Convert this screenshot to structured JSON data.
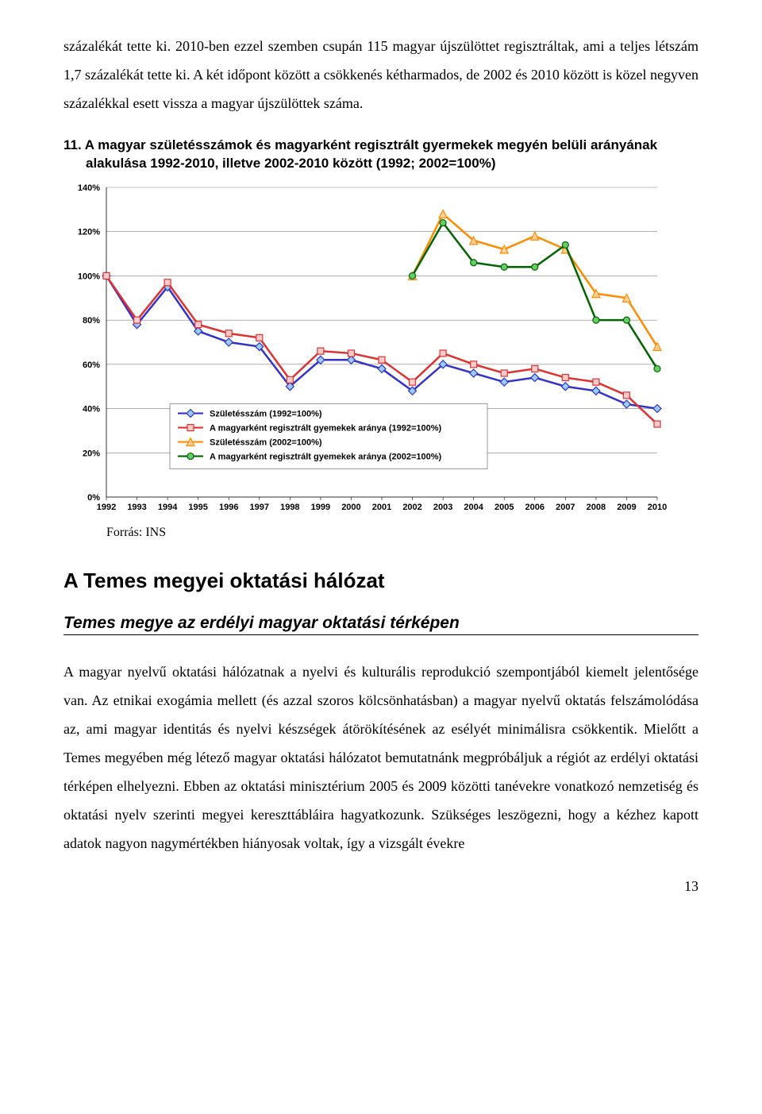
{
  "para1": "százalékát tette ki. 2010-ben ezzel szemben csupán 115 magyar újszülöttet regisztráltak, ami a teljes létszám 1,7 százalékát tette ki. A két időpont között a csökkenés kétharmados, de 2002 és 2010 között is közel negyven százalékkal esett vissza a magyar újszülöttek száma.",
  "figure": {
    "number": "11.",
    "title_rest": "A magyar születésszámok és magyarként regisztrált gyermekek megyén belüli arányának alakulása 1992-2010, illetve 2002-2010 között (1992; 2002=100%)",
    "source": "Forrás: INS"
  },
  "section_heading": "A Temes megyei oktatási hálózat",
  "subsection_heading": "Temes megye az erdélyi magyar oktatási térképen",
  "para2": "A magyar nyelvű oktatási hálózatnak a nyelvi és kulturális reprodukció szempontjából kiemelt jelentősége van. Az etnikai exogámia mellett (és azzal szoros kölcsönhatásban) a magyar nyelvű oktatás felszámolódása az, ami magyar identitás és nyelvi készségek átörökítésének az esélyét minimálisra csökkentik. Mielőtt a Temes megyében még létező magyar oktatási hálózatot bemutatnánk megpróbáljuk a régiót az erdélyi oktatási térképen elhelyezni. Ebben az oktatási minisztérium 2005 és 2009 közötti tanévekre vonatkozó nemzetiség és oktatási nyelv szerinti megyei kereszttábláira hagyatkozunk. Szükséges leszögezni, hogy a kézhez kapott adatok nagyon nagymértékben hiányosak voltak, így a vizsgált évekre",
  "page_number": "13",
  "chart": {
    "type": "line",
    "categories": [
      "1992",
      "1993",
      "1994",
      "1995",
      "1996",
      "1997",
      "1998",
      "1999",
      "2000",
      "2001",
      "2002",
      "2003",
      "2004",
      "2005",
      "2006",
      "2007",
      "2008",
      "2009",
      "2010"
    ],
    "ylim": [
      0,
      140
    ],
    "ytick_step": 20,
    "ytick_labels": [
      "0%",
      "20%",
      "40%",
      "60%",
      "80%",
      "100%",
      "120%",
      "140%"
    ],
    "grid_color": "#808080",
    "background_color": "#ffffff",
    "label_fontsize": 11,
    "legend": {
      "position": "bottom-inside",
      "border_color": "#808080",
      "items": [
        {
          "label": "Születésszám (1992=100%)",
          "color": "#3333cc",
          "marker": "diamond",
          "marker_fill": "#99ccff"
        },
        {
          "label": "A magyarként regisztrált gyemekek aránya (1992=100%)",
          "color": "#e03030",
          "marker": "square",
          "marker_fill": "#ffcccc"
        },
        {
          "label": "Születésszám (2002=100%)",
          "color": "#ff8c00",
          "marker": "triangle",
          "marker_fill": "#ffd199"
        },
        {
          "label": "A magyarként regisztrált gyemekek aránya (2002=100%)",
          "color": "#006400",
          "marker": "circle",
          "marker_fill": "#66cc66"
        }
      ]
    },
    "series": [
      {
        "name": "Születésszám (1992=100%)",
        "color": "#3333cc",
        "marker": "diamond",
        "marker_fill": "#99ccff",
        "line_width": 2.5,
        "values": [
          100,
          78,
          95,
          75,
          70,
          68,
          50,
          62,
          62,
          58,
          48,
          60,
          56,
          52,
          54,
          50,
          48,
          42,
          40
        ]
      },
      {
        "name": "A magyarként regisztrált gyemekek aránya (1992=100%)",
        "color": "#e03030",
        "marker": "square",
        "marker_fill": "#ffcccc",
        "line_width": 2.5,
        "values": [
          100,
          80,
          97,
          78,
          74,
          72,
          53,
          66,
          65,
          62,
          52,
          65,
          60,
          56,
          58,
          54,
          52,
          46,
          33
        ]
      },
      {
        "name": "Születésszám (2002=100%)",
        "color": "#ff8c00",
        "marker": "triangle",
        "marker_fill": "#ffd199",
        "line_width": 2.5,
        "values": [
          null,
          null,
          null,
          null,
          null,
          null,
          null,
          null,
          null,
          null,
          100,
          128,
          116,
          112,
          118,
          112,
          92,
          90,
          68
        ]
      },
      {
        "name": "A magyarként regisztrált gyemekek aránya (2002=100%)",
        "color": "#006400",
        "marker": "circle",
        "marker_fill": "#66cc66",
        "line_width": 2.5,
        "values": [
          null,
          null,
          null,
          null,
          null,
          null,
          null,
          null,
          null,
          null,
          100,
          124,
          106,
          104,
          104,
          114,
          80,
          80,
          58
        ]
      }
    ]
  }
}
